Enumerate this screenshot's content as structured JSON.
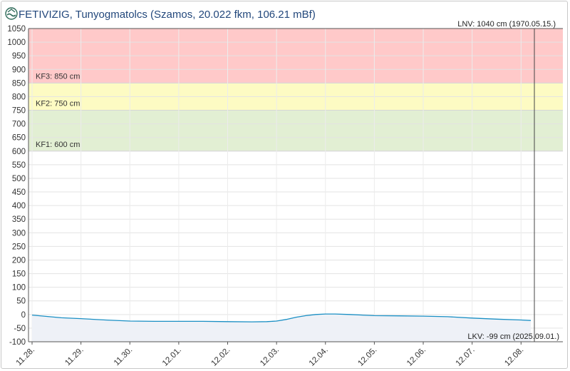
{
  "header": {
    "title": "FETIVIZIG, Tunyogmatolcs (Szamos, 20.022 fkm, 106.21 mBf)",
    "logo_icon": "fetivizig-logo-icon"
  },
  "colors": {
    "kf3_zone": "#ffc9c9",
    "kf2_zone": "#fdfbc3",
    "kf1_zone": "#e2efd3",
    "line": "#1a8fc4",
    "area": "#eef1f7",
    "title": "#23487c"
  },
  "chart_data": {
    "type": "line",
    "title": "FETIVIZIG, Tunyogmatolcs (Szamos, 20.022 fkm, 106.21 mBf)",
    "xlabel": "",
    "ylabel": "",
    "ylim": [
      -100,
      1050
    ],
    "yticks": [
      1050,
      1000,
      950,
      900,
      850,
      800,
      750,
      700,
      650,
      600,
      550,
      500,
      450,
      400,
      350,
      300,
      250,
      200,
      150,
      100,
      50,
      0,
      -50,
      -100
    ],
    "xticks": [
      "11.28.",
      "11.29.",
      "11.30.",
      "12.01.",
      "12.02.",
      "12.03.",
      "12.04.",
      "12.05.",
      "12.06.",
      "12.07.",
      "12.08."
    ],
    "xlim_days": [
      0,
      10.2
    ],
    "grid": true,
    "zones": [
      {
        "label": "KF3: 850 cm",
        "from": 850,
        "to": 1050
      },
      {
        "label": "KF2: 750 cm",
        "from": 750,
        "to": 850
      },
      {
        "label": "KF1: 600 cm",
        "from": 600,
        "to": 750
      }
    ],
    "annotations": {
      "lnv": "LNV: 1040 cm (1970.05.15.)",
      "lkv": "LKV: -99 cm (2025.09.01.)"
    },
    "series": [
      {
        "x": [
          0,
          0.3,
          0.6,
          1.0,
          1.5,
          2.0,
          2.5,
          3.0,
          3.5,
          4.0,
          4.5,
          4.8,
          5.0,
          5.2,
          5.4,
          5.6,
          5.8,
          6.0,
          6.2,
          6.5,
          7.0,
          7.5,
          8.0,
          8.5,
          9.0,
          9.5,
          10.0,
          10.2
        ],
        "y": [
          -2,
          -7,
          -12,
          -15,
          -20,
          -24,
          -25,
          -25,
          -25,
          -26,
          -27,
          -26,
          -24,
          -18,
          -10,
          -4,
          0,
          2,
          2,
          0,
          -4,
          -5,
          -6,
          -8,
          -13,
          -17,
          -20,
          -22
        ]
      }
    ]
  }
}
